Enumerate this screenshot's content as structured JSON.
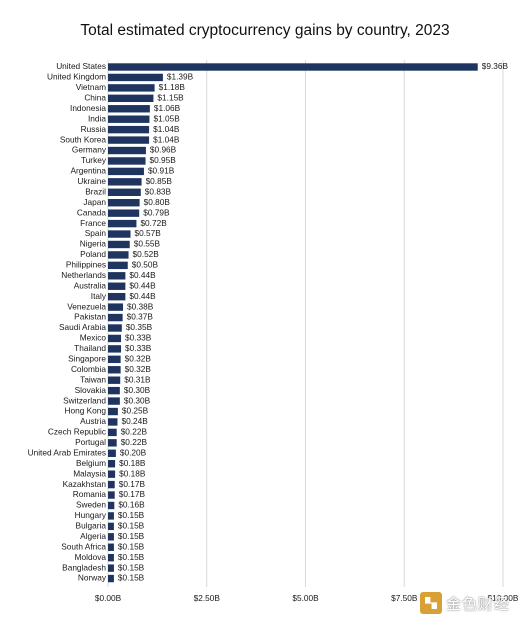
{
  "chart_data": {
    "type": "bar",
    "orientation": "horizontal",
    "title": "Total estimated cryptocurrency gains by country, 2023",
    "xlim": [
      0,
      10
    ],
    "x_ticks": [
      0,
      2.5,
      5,
      7.5,
      10
    ],
    "x_tick_labels": [
      "$0.00B",
      "$2.50B",
      "$5.00B",
      "$7.50B",
      "$10.00B"
    ],
    "grid": "vertical",
    "bar_color": "#1f3560",
    "categories": [
      "United States",
      "United Kingdom",
      "Vietnam",
      "China",
      "Indonesia",
      "India",
      "Russia",
      "South Korea",
      "Germany",
      "Turkey",
      "Argentina",
      "Ukraine",
      "Brazil",
      "Japan",
      "Canada",
      "France",
      "Spain",
      "Nigeria",
      "Poland",
      "Philippines",
      "Netherlands",
      "Australia",
      "Italy",
      "Venezuela",
      "Pakistan",
      "Saudi Arabia",
      "Mexico",
      "Thailand",
      "Singapore",
      "Colombia",
      "Taiwan",
      "Slovakia",
      "Switzerland",
      "Hong Kong",
      "Austria",
      "Czech Republic",
      "Portugal",
      "United Arab Emirates",
      "Belgium",
      "Malaysia",
      "Kazakhstan",
      "Romania",
      "Sweden",
      "Hungary",
      "Bulgaria",
      "Algeria",
      "South Africa",
      "Moldova",
      "Bangladesh",
      "Norway"
    ],
    "values": [
      9.36,
      1.39,
      1.18,
      1.15,
      1.06,
      1.05,
      1.04,
      1.04,
      0.96,
      0.95,
      0.91,
      0.85,
      0.83,
      0.8,
      0.79,
      0.72,
      0.57,
      0.55,
      0.52,
      0.5,
      0.44,
      0.44,
      0.44,
      0.38,
      0.37,
      0.35,
      0.33,
      0.33,
      0.32,
      0.32,
      0.31,
      0.3,
      0.3,
      0.25,
      0.24,
      0.22,
      0.22,
      0.2,
      0.18,
      0.18,
      0.17,
      0.17,
      0.16,
      0.15,
      0.15,
      0.15,
      0.15,
      0.15,
      0.15,
      0.15
    ],
    "value_labels": [
      "$9.36B",
      "$1.39B",
      "$1.18B",
      "$1.15B",
      "$1.06B",
      "$1.05B",
      "$1.04B",
      "$1.04B",
      "$0.96B",
      "$0.95B",
      "$0.91B",
      "$0.85B",
      "$0.83B",
      "$0.80B",
      "$0.79B",
      "$0.72B",
      "$0.57B",
      "$0.55B",
      "$0.52B",
      "$0.50B",
      "$0.44B",
      "$0.44B",
      "$0.44B",
      "$0.38B",
      "$0.37B",
      "$0.35B",
      "$0.33B",
      "$0.33B",
      "$0.32B",
      "$0.32B",
      "$0.31B",
      "$0.30B",
      "$0.30B",
      "$0.25B",
      "$0.24B",
      "$0.22B",
      "$0.22B",
      "$0.20B",
      "$0.18B",
      "$0.18B",
      "$0.17B",
      "$0.17B",
      "$0.16B",
      "$0.15B",
      "$0.15B",
      "$0.15B",
      "$0.15B",
      "$0.15B",
      "$0.15B",
      "$0.15B"
    ]
  },
  "watermark": {
    "text": "金色财经",
    "badge_color": "#d9a036"
  }
}
